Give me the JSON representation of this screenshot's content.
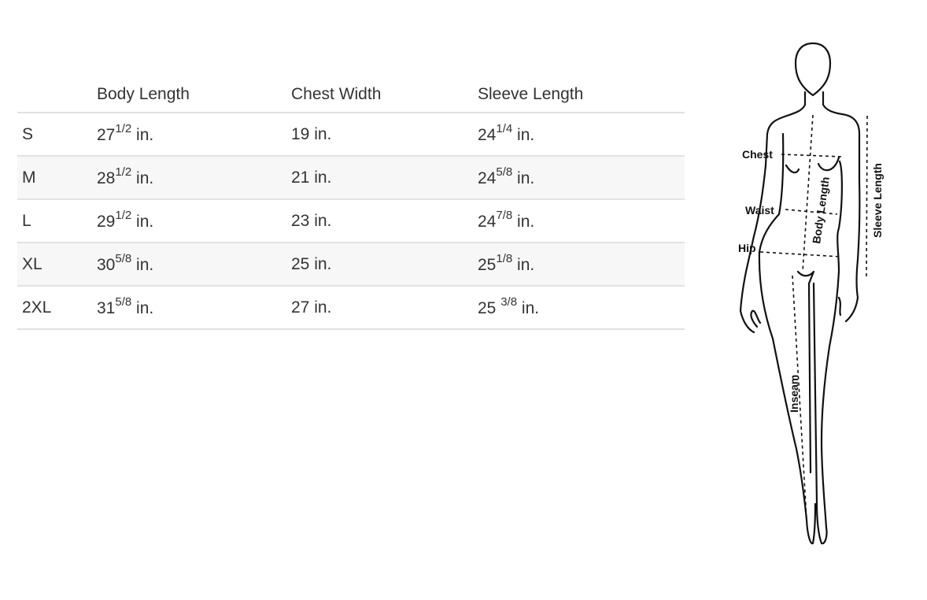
{
  "table": {
    "headers": [
      "",
      "Body Length",
      "Chest Width",
      "Sleeve Length"
    ],
    "rows": [
      {
        "size": "S",
        "body_whole": "27",
        "body_frac": "1/2",
        "chest": "19 in.",
        "sleeve_whole": "24",
        "sleeve_frac": "1/4",
        "unit": " in."
      },
      {
        "size": "M",
        "body_whole": "28",
        "body_frac": "1/2",
        "chest": "21 in.",
        "sleeve_whole": "24",
        "sleeve_frac": "5/8",
        "unit": " in."
      },
      {
        "size": "L",
        "body_whole": "29",
        "body_frac": "1/2",
        "chest": "23 in.",
        "sleeve_whole": "24",
        "sleeve_frac": "7/8",
        "unit": " in."
      },
      {
        "size": "XL",
        "body_whole": "30",
        "body_frac": "5/8",
        "chest": "25 in.",
        "sleeve_whole": "25",
        "sleeve_frac": "1/8",
        "unit": " in."
      },
      {
        "size": "2XL",
        "body_whole": "31",
        "body_frac": "5/8",
        "chest": "27 in.",
        "sleeve_whole": "25 ",
        "sleeve_frac": "3/8",
        "unit": " in."
      }
    ]
  },
  "figure": {
    "labels": {
      "chest": "Chest",
      "waist": "Waist",
      "hip": "Hip",
      "body_length": "Body Length",
      "sleeve_length": "Sleeve Length",
      "inseam": "Inseam"
    }
  },
  "colors": {
    "text": "#333333",
    "row_alt": "#f7f7f7",
    "divider": "#e2e2e2"
  }
}
